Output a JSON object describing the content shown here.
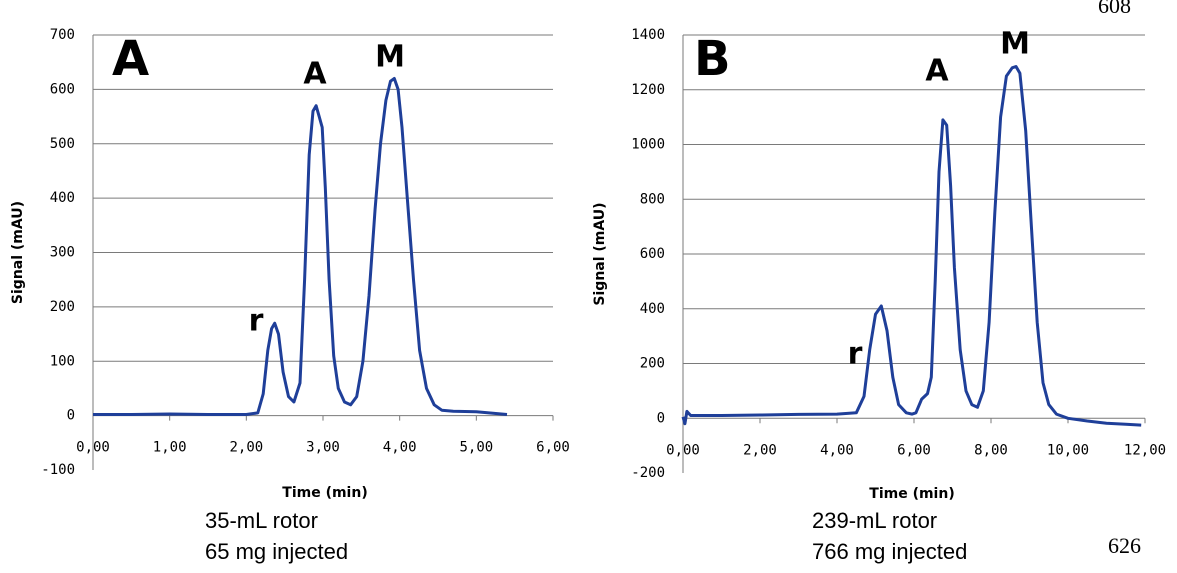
{
  "header_fragment": "608",
  "page_number": "626",
  "chart_data": [
    {
      "type": "line",
      "panel_label": "A",
      "annotations": [
        "r",
        "A",
        "M"
      ],
      "y_label": "Signal (mAU)",
      "x_label": "Time (min)",
      "caption": [
        "35-mL rotor",
        "65 mg injected"
      ],
      "xlim": [
        0,
        6
      ],
      "ylim": [
        -100,
        700
      ],
      "xticks": [
        {
          "value": 0,
          "label": "0,00"
        },
        {
          "value": 1,
          "label": "1,00"
        },
        {
          "value": 2,
          "label": "2,00"
        },
        {
          "value": 3,
          "label": "3,00"
        },
        {
          "value": 4,
          "label": "4,00"
        },
        {
          "value": 5,
          "label": "5,00"
        },
        {
          "value": 6,
          "label": "6,00"
        }
      ],
      "yticks": [
        -100,
        0,
        100,
        200,
        300,
        400,
        500,
        600,
        700
      ],
      "grid": true,
      "color": "#1f3f99",
      "x": [
        0,
        0.5,
        1.0,
        1.5,
        2.0,
        2.15,
        2.22,
        2.28,
        2.33,
        2.37,
        2.42,
        2.48,
        2.55,
        2.62,
        2.7,
        2.76,
        2.82,
        2.87,
        2.91,
        2.95,
        2.99,
        3.03,
        3.08,
        3.14,
        3.2,
        3.28,
        3.36,
        3.44,
        3.52,
        3.6,
        3.68,
        3.75,
        3.82,
        3.88,
        3.93,
        3.98,
        4.03,
        4.1,
        4.18,
        4.26,
        4.35,
        4.45,
        4.55,
        4.7,
        5.0,
        5.4
      ],
      "values": [
        2,
        2,
        3,
        2,
        2,
        5,
        40,
        120,
        160,
        170,
        150,
        80,
        35,
        25,
        60,
        250,
        480,
        560,
        570,
        550,
        530,
        420,
        250,
        110,
        50,
        25,
        20,
        35,
        100,
        220,
        380,
        500,
        580,
        615,
        620,
        600,
        530,
        400,
        250,
        120,
        50,
        20,
        10,
        8,
        7,
        2
      ]
    },
    {
      "type": "line",
      "panel_label": "B",
      "annotations": [
        "r",
        "A",
        "M"
      ],
      "y_label": "Signal (mAU)",
      "x_label": "Time (min)",
      "caption": [
        "239-mL rotor",
        "766 mg injected"
      ],
      "xlim": [
        0,
        12
      ],
      "ylim": [
        -200,
        1400
      ],
      "xticks": [
        {
          "value": 0,
          "label": "0,00"
        },
        {
          "value": 2,
          "label": "2,00"
        },
        {
          "value": 4,
          "label": "4,00"
        },
        {
          "value": 6,
          "label": "6,00"
        },
        {
          "value": 8,
          "label": "8,00"
        },
        {
          "value": 10,
          "label": "10,00"
        },
        {
          "value": 12,
          "label": "12,00"
        }
      ],
      "yticks": [
        -200,
        0,
        200,
        400,
        600,
        800,
        1000,
        1200,
        1400
      ],
      "grid": true,
      "color": "#1f3f99",
      "x": [
        0,
        0.05,
        0.1,
        0.2,
        1,
        2,
        3,
        4,
        4.5,
        4.7,
        4.85,
        5.0,
        5.15,
        5.3,
        5.45,
        5.6,
        5.8,
        5.95,
        6.05,
        6.2,
        6.35,
        6.45,
        6.55,
        6.65,
        6.75,
        6.85,
        6.95,
        7.05,
        7.2,
        7.35,
        7.5,
        7.65,
        7.8,
        7.95,
        8.1,
        8.25,
        8.4,
        8.55,
        8.65,
        8.75,
        8.9,
        9.05,
        9.2,
        9.35,
        9.5,
        9.7,
        10,
        10.5,
        11,
        11.5,
        11.9
      ],
      "values": [
        5,
        -20,
        25,
        10,
        10,
        12,
        14,
        15,
        20,
        80,
        250,
        380,
        410,
        320,
        150,
        50,
        20,
        15,
        20,
        70,
        90,
        150,
        500,
        900,
        1090,
        1070,
        850,
        550,
        250,
        100,
        50,
        40,
        100,
        350,
        750,
        1100,
        1250,
        1280,
        1285,
        1260,
        1050,
        700,
        350,
        130,
        50,
        15,
        0,
        -10,
        -18,
        -22,
        -25
      ]
    }
  ]
}
